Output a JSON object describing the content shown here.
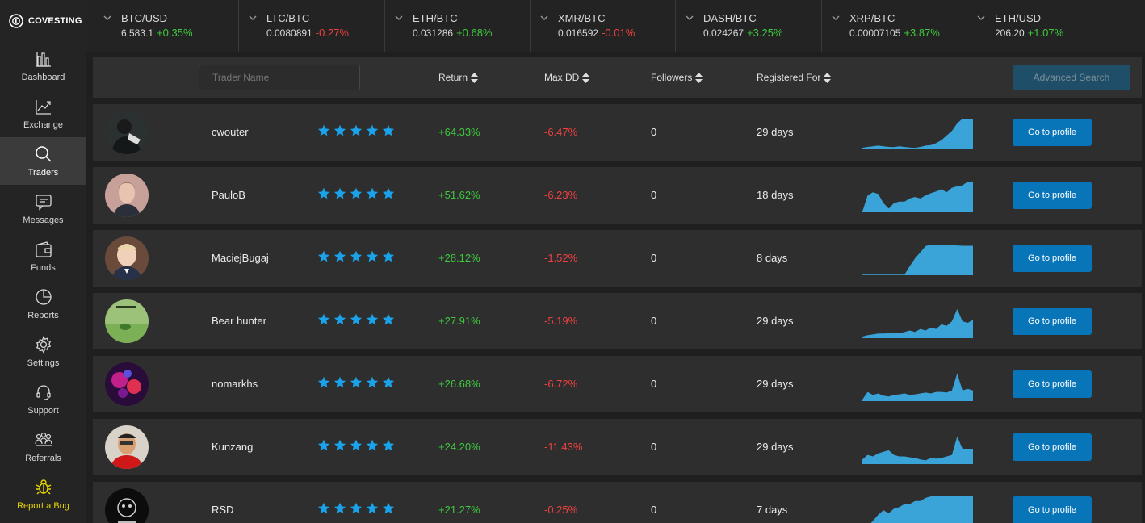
{
  "app": {
    "name": "COVESTING"
  },
  "colors": {
    "positive": "#3ec93e",
    "negative": "#f04040",
    "accent": "#0875b8",
    "star": "#1aa3ea",
    "bug": "#e6d500"
  },
  "sidebar": {
    "items": [
      {
        "label": "Dashboard",
        "icon": "bar-chart-icon"
      },
      {
        "label": "Exchange",
        "icon": "trend-icon"
      },
      {
        "label": "Traders",
        "icon": "search-icon",
        "active": true
      },
      {
        "label": "Messages",
        "icon": "chat-icon"
      },
      {
        "label": "Funds",
        "icon": "wallet-icon"
      },
      {
        "label": "Reports",
        "icon": "pie-icon"
      },
      {
        "label": "Settings",
        "icon": "gear-icon"
      },
      {
        "label": "Support",
        "icon": "headset-icon"
      },
      {
        "label": "Referrals",
        "icon": "people-icon"
      },
      {
        "label": "Report a Bug",
        "icon": "bug-icon"
      }
    ]
  },
  "ticker": [
    {
      "pair": "BTC/USD",
      "price": "6,583.1",
      "change": "+0.35%",
      "dir": "pos"
    },
    {
      "pair": "LTC/BTC",
      "price": "0.0080891",
      "change": "-0.27%",
      "dir": "neg"
    },
    {
      "pair": "ETH/BTC",
      "price": "0.031286",
      "change": "+0.68%",
      "dir": "pos"
    },
    {
      "pair": "XMR/BTC",
      "price": "0.016592",
      "change": "-0.01%",
      "dir": "neg"
    },
    {
      "pair": "DASH/BTC",
      "price": "0.024267",
      "change": "+3.25%",
      "dir": "pos"
    },
    {
      "pair": "XRP/BTC",
      "price": "0.00007105",
      "change": "+3.87%",
      "dir": "pos"
    },
    {
      "pair": "ETH/USD",
      "price": "206.20",
      "change": "+1.07%",
      "dir": "pos"
    }
  ],
  "filters": {
    "trader_name_placeholder": "Trader Name",
    "return_label": "Return",
    "maxdd_label": "Max DD",
    "followers_label": "Followers",
    "registered_label": "Registered For",
    "advanced_search_label": "Advanced Search"
  },
  "traders": [
    {
      "name": "cwouter",
      "stars": 5,
      "return": "+64.33%",
      "max_dd": "-6.47%",
      "followers": "0",
      "registered": "29 days",
      "button": "Go to profile",
      "spark": [
        0.05,
        0.08,
        0.1,
        0.12,
        0.1,
        0.08,
        0.07,
        0.1,
        0.08,
        0.06,
        0.05,
        0.08,
        0.12,
        0.14,
        0.2,
        0.3,
        0.45,
        0.6,
        0.85,
        1,
        1,
        1
      ]
    },
    {
      "name": "PauloB",
      "stars": 5,
      "return": "+51.62%",
      "max_dd": "-6.23%",
      "followers": "0",
      "registered": "18 days",
      "button": "Go to profile",
      "spark": [
        0.02,
        0.55,
        0.65,
        0.6,
        0.3,
        0.12,
        0.3,
        0.35,
        0.35,
        0.45,
        0.5,
        0.45,
        0.55,
        0.62,
        0.68,
        0.75,
        0.65,
        0.8,
        0.85,
        0.88,
        1,
        1
      ]
    },
    {
      "name": "MaciejBugaj",
      "stars": 5,
      "return": "+28.12%",
      "max_dd": "-1.52%",
      "followers": "0",
      "registered": "8 days",
      "button": "Go to profile",
      "spark": [
        0.02,
        0.02,
        0.02,
        0.02,
        0.02,
        0.02,
        0.02,
        0.02,
        0.02,
        0.3,
        0.55,
        0.75,
        0.95,
        1,
        1,
        0.99,
        0.98,
        0.98,
        0.97,
        0.96,
        0.96,
        0.96
      ]
    },
    {
      "name": "Bear hunter",
      "stars": 5,
      "return": "+27.91%",
      "max_dd": "-5.19%",
      "followers": "0",
      "registered": "29 days",
      "button": "Go to profile",
      "spark": [
        0.05,
        0.1,
        0.12,
        0.15,
        0.15,
        0.16,
        0.18,
        0.16,
        0.2,
        0.25,
        0.2,
        0.3,
        0.25,
        0.35,
        0.3,
        0.45,
        0.4,
        0.55,
        0.95,
        0.55,
        0.5,
        0.6
      ]
    },
    {
      "name": "nomarkhs",
      "stars": 5,
      "return": "+26.68%",
      "max_dd": "-6.72%",
      "followers": "0",
      "registered": "29 days",
      "button": "Go to profile",
      "spark": [
        0.05,
        0.3,
        0.2,
        0.25,
        0.18,
        0.15,
        0.2,
        0.22,
        0.25,
        0.2,
        0.22,
        0.25,
        0.28,
        0.25,
        0.3,
        0.3,
        0.28,
        0.35,
        0.9,
        0.35,
        0.4,
        0.35
      ]
    },
    {
      "name": "Kunzang",
      "stars": 5,
      "return": "+24.20%",
      "max_dd": "-11.43%",
      "followers": "0",
      "registered": "29 days",
      "button": "Go to profile",
      "spark": [
        0.15,
        0.3,
        0.25,
        0.35,
        0.4,
        0.45,
        0.3,
        0.25,
        0.25,
        0.22,
        0.2,
        0.15,
        0.12,
        0.2,
        0.18,
        0.2,
        0.25,
        0.3,
        0.9,
        0.5,
        0.5,
        0.5
      ]
    },
    {
      "name": "RSD",
      "stars": 5,
      "return": "+21.27%",
      "max_dd": "-0.25%",
      "followers": "0",
      "registered": "7 days",
      "button": "Go to profile",
      "spark": [
        0.02,
        0.02,
        0.2,
        0.4,
        0.55,
        0.45,
        0.6,
        0.65,
        0.75,
        0.75,
        0.85,
        0.85,
        0.95,
        1,
        1,
        1,
        1,
        1,
        1,
        1,
        1,
        1
      ]
    }
  ]
}
